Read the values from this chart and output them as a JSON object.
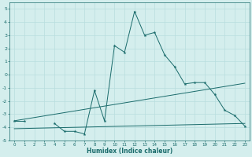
{
  "xlabel": "Humidex (Indice chaleur)",
  "x_values": [
    0,
    1,
    2,
    3,
    4,
    5,
    6,
    7,
    8,
    9,
    10,
    11,
    12,
    13,
    14,
    15,
    16,
    17,
    18,
    19,
    20,
    21,
    22,
    23
  ],
  "line_main": [
    -3.5,
    -3.5,
    null,
    null,
    -3.7,
    -4.3,
    -4.3,
    -4.5,
    -1.2,
    -3.5,
    2.2,
    1.7,
    4.8,
    3.0,
    3.2,
    1.5,
    0.6,
    -0.7,
    -0.6,
    -0.6,
    -1.5,
    -2.7,
    -3.1,
    -3.9
  ],
  "line_trend1_x": [
    0,
    23
  ],
  "line_trend1_y": [
    -3.5,
    -0.65
  ],
  "line_trend2_x": [
    0,
    23
  ],
  "line_trend2_y": [
    -4.1,
    -3.7
  ],
  "line_color": "#1a6b6b",
  "bg_color": "#d4eeed",
  "grid_color": "#b8dede",
  "ylim": [
    -5,
    5.5
  ],
  "xlim": [
    -0.5,
    23.5
  ],
  "yticks": [
    -5,
    -4,
    -3,
    -2,
    -1,
    0,
    1,
    2,
    3,
    4,
    5
  ],
  "xticks": [
    0,
    1,
    2,
    3,
    4,
    5,
    6,
    7,
    8,
    9,
    10,
    11,
    12,
    13,
    14,
    15,
    16,
    17,
    18,
    19,
    20,
    21,
    22,
    23
  ]
}
